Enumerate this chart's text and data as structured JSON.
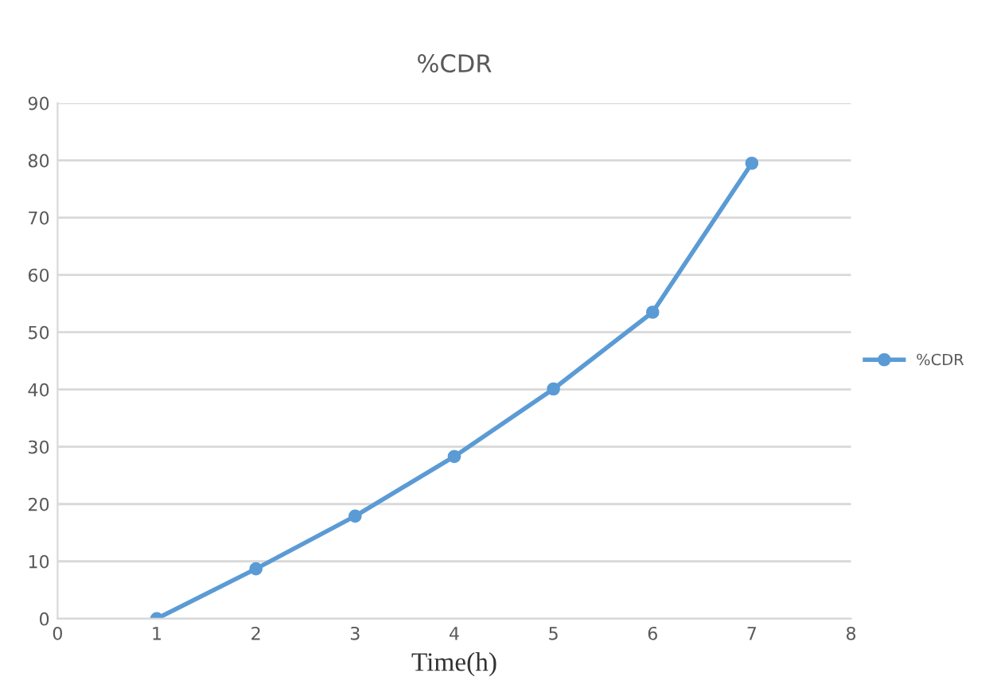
{
  "chart_data": {
    "type": "line",
    "title": "%CDR",
    "xlabel": "Time(h)",
    "x": [
      1,
      2,
      3,
      4,
      5,
      6,
      7
    ],
    "series": [
      {
        "name": "%CDR",
        "color": "#5b9bd5",
        "values": [
          0,
          8.7,
          17.9,
          28.3,
          40.1,
          53.5,
          79.5
        ]
      }
    ],
    "xlim": [
      0,
      8
    ],
    "xticks": [
      0,
      1,
      2,
      3,
      4,
      5,
      6,
      7,
      8
    ],
    "ylim": [
      0,
      90
    ],
    "yticks": [
      0,
      10,
      20,
      30,
      40,
      50,
      60,
      70,
      80,
      90
    ],
    "grid": "y",
    "legend": "right",
    "marker": "circle",
    "line_style": "solid"
  }
}
